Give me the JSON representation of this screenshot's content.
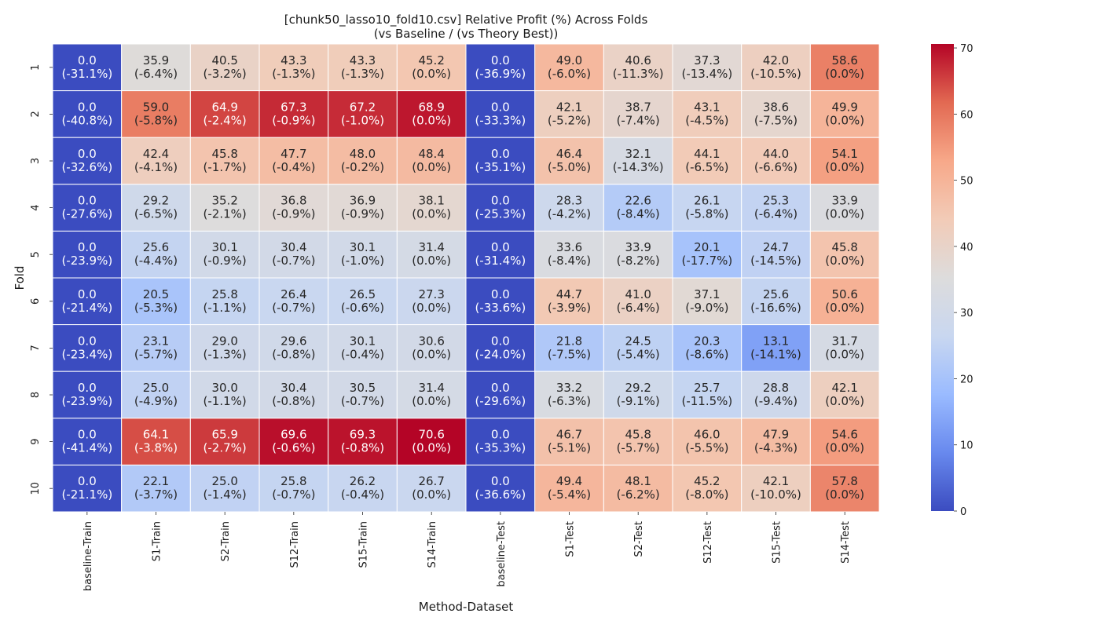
{
  "chart_data": {
    "type": "heatmap",
    "title": "[chunk50_lasso10_fold10.csv] Relative Profit (%) Across Folds",
    "subtitle": "(vs Baseline / (vs Theory Best))",
    "xlabel": "Method-Dataset",
    "ylabel": "Fold",
    "x_categories": [
      "baseline-Train",
      "S1-Train",
      "S2-Train",
      "S12-Train",
      "S15-Train",
      "S14-Train",
      "baseline-Test",
      "S1-Test",
      "S2-Test",
      "S12-Test",
      "S15-Test",
      "S14-Test"
    ],
    "y_categories": [
      "1",
      "2",
      "3",
      "4",
      "5",
      "6",
      "7",
      "8",
      "9",
      "10"
    ],
    "values": [
      [
        0.0,
        35.9,
        40.5,
        43.3,
        43.3,
        45.2,
        0.0,
        49.0,
        40.6,
        37.3,
        42.0,
        58.6
      ],
      [
        0.0,
        59.0,
        64.9,
        67.3,
        67.2,
        68.9,
        0.0,
        42.1,
        38.7,
        43.1,
        38.6,
        49.9
      ],
      [
        0.0,
        42.4,
        45.8,
        47.7,
        48.0,
        48.4,
        0.0,
        46.4,
        32.1,
        44.1,
        44.0,
        54.1
      ],
      [
        0.0,
        29.2,
        35.2,
        36.8,
        36.9,
        38.1,
        0.0,
        28.3,
        22.6,
        26.1,
        25.3,
        33.9
      ],
      [
        0.0,
        25.6,
        30.1,
        30.4,
        30.1,
        31.4,
        0.0,
        33.6,
        33.9,
        20.1,
        24.7,
        45.8
      ],
      [
        0.0,
        20.5,
        25.8,
        26.4,
        26.5,
        27.3,
        0.0,
        44.7,
        41.0,
        37.1,
        25.6,
        50.6
      ],
      [
        0.0,
        23.1,
        29.0,
        29.6,
        30.1,
        30.6,
        0.0,
        21.8,
        24.5,
        20.3,
        13.1,
        31.7
      ],
      [
        0.0,
        25.0,
        30.0,
        30.4,
        30.5,
        31.4,
        0.0,
        33.2,
        29.2,
        25.7,
        28.8,
        42.1
      ],
      [
        0.0,
        64.1,
        65.9,
        69.6,
        69.3,
        70.6,
        0.0,
        46.7,
        45.8,
        46.0,
        47.9,
        54.6
      ],
      [
        0.0,
        22.1,
        25.0,
        25.8,
        26.2,
        26.7,
        0.0,
        49.4,
        48.1,
        45.2,
        42.1,
        57.8
      ]
    ],
    "vs_theory_best": [
      [
        "-31.1",
        "-6.4",
        "-3.2",
        "-1.3",
        "-1.3",
        "0.0",
        "-36.9",
        "-6.0",
        "-11.3",
        "-13.4",
        "-10.5",
        "0.0"
      ],
      [
        "-40.8",
        "-5.8",
        "-2.4",
        "-0.9",
        "-1.0",
        "0.0",
        "-33.3",
        "-5.2",
        "-7.4",
        "-4.5",
        "-7.5",
        "0.0"
      ],
      [
        "-32.6",
        "-4.1",
        "-1.7",
        "-0.4",
        "-0.2",
        "0.0",
        "-35.1",
        "-5.0",
        "-14.3",
        "-6.5",
        "-6.6",
        "0.0"
      ],
      [
        "-27.6",
        "-6.5",
        "-2.1",
        "-0.9",
        "-0.9",
        "0.0",
        "-25.3",
        "-4.2",
        "-8.4",
        "-5.8",
        "-6.4",
        "0.0"
      ],
      [
        "-23.9",
        "-4.4",
        "-0.9",
        "-0.7",
        "-1.0",
        "0.0",
        "-31.4",
        "-8.4",
        "-8.2",
        "-17.7",
        "-14.5",
        "0.0"
      ],
      [
        "-21.4",
        "-5.3",
        "-1.1",
        "-0.7",
        "-0.6",
        "0.0",
        "-33.6",
        "-3.9",
        "-6.4",
        "-9.0",
        "-16.6",
        "0.0"
      ],
      [
        "-23.4",
        "-5.7",
        "-1.3",
        "-0.8",
        "-0.4",
        "0.0",
        "-24.0",
        "-7.5",
        "-5.4",
        "-8.6",
        "-14.1",
        "0.0"
      ],
      [
        "-23.9",
        "-4.9",
        "-1.1",
        "-0.8",
        "-0.7",
        "0.0",
        "-29.6",
        "-6.3",
        "-9.1",
        "-11.5",
        "-9.4",
        "0.0"
      ],
      [
        "-41.4",
        "-3.8",
        "-2.7",
        "-0.6",
        "-0.8",
        "0.0",
        "-35.3",
        "-5.1",
        "-5.7",
        "-5.5",
        "-4.3",
        "0.0"
      ],
      [
        "-21.1",
        "-3.7",
        "-1.4",
        "-0.7",
        "-0.4",
        "0.0",
        "-36.6",
        "-5.4",
        "-6.2",
        "-8.0",
        "-10.0",
        "0.0"
      ]
    ],
    "colormap": "coolwarm",
    "colormap_stops": [
      "#3b4cc0",
      "#6889ee",
      "#9abbff",
      "#c9d7f0",
      "#dddcdc",
      "#f2cbb7",
      "#f7a889",
      "#e26952",
      "#b40426"
    ],
    "vmin": 0,
    "vmax": 70.6,
    "colorbar_ticks": [
      0,
      10,
      20,
      30,
      40,
      50,
      60,
      70
    ],
    "grid": false,
    "legend": "colorbar right"
  }
}
